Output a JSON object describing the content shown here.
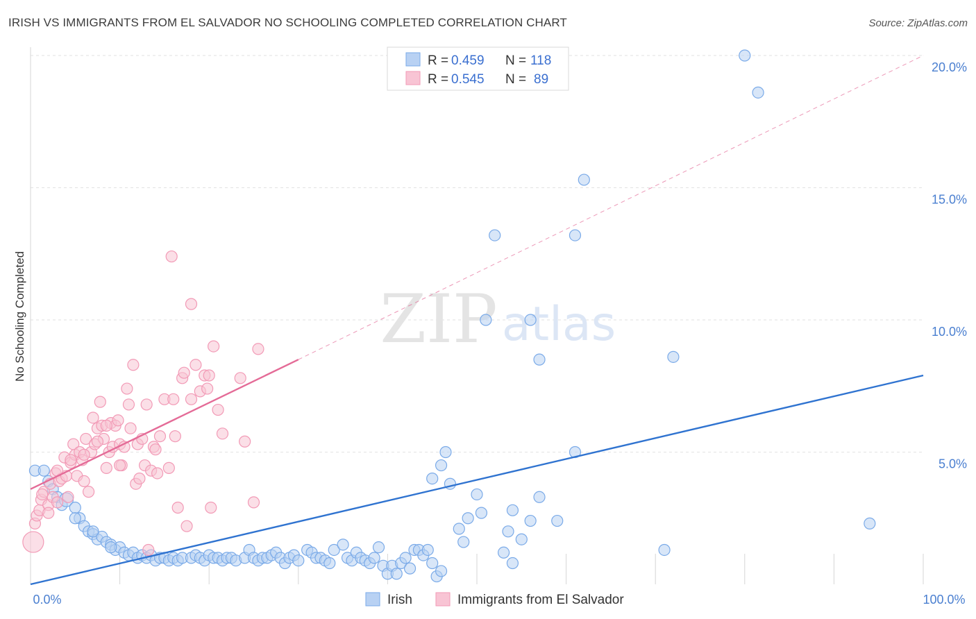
{
  "header": {
    "title": "IRISH VS IMMIGRANTS FROM EL SALVADOR NO SCHOOLING COMPLETED CORRELATION CHART",
    "source": "Source: ZipAtlas.com"
  },
  "watermark": {
    "zip": "ZIP",
    "atlas": "atlas"
  },
  "chart_data": {
    "type": "scatter",
    "ylabel": "No Schooling Completed",
    "xlim": [
      0,
      100
    ],
    "ylim": [
      0,
      20
    ],
    "y_ticks": [
      {
        "value": 5,
        "label": "5.0%"
      },
      {
        "value": 10,
        "label": "10.0%"
      },
      {
        "value": 15,
        "label": "15.0%"
      },
      {
        "value": 20,
        "label": "20.0%"
      }
    ],
    "x_ticks": [
      {
        "value": 0,
        "label": "0.0%"
      },
      {
        "value": 100,
        "label": "100.0%"
      }
    ],
    "legend": {
      "placement": "top-center",
      "rows": [
        {
          "r_label": "R =",
          "r_value": "0.459",
          "n_label": "N =",
          "n_value": "118"
        },
        {
          "r_label": "R =",
          "r_value": "0.545",
          "n_label": "N =",
          "n_value": "89"
        }
      ]
    },
    "series": [
      {
        "name": "Irish",
        "color": "#7aaae8",
        "fill": "#b8d1f3",
        "trend": {
          "x0": 0,
          "y0": 0.0,
          "x1": 100,
          "y1": 7.9,
          "color": "#2f73d0"
        },
        "points": [
          [
            0.5,
            4.3
          ],
          [
            1.5,
            4.3
          ],
          [
            2,
            3.9
          ],
          [
            2.5,
            3.6
          ],
          [
            3,
            3.3
          ],
          [
            3.5,
            3.0
          ],
          [
            4,
            3.2
          ],
          [
            5,
            2.9
          ],
          [
            5.5,
            2.5
          ],
          [
            6,
            2.2
          ],
          [
            6.5,
            2.0
          ],
          [
            7,
            1.9
          ],
          [
            7.5,
            1.7
          ],
          [
            8,
            1.8
          ],
          [
            8.5,
            1.6
          ],
          [
            9,
            1.5
          ],
          [
            9.5,
            1.3
          ],
          [
            10,
            1.4
          ],
          [
            10.5,
            1.2
          ],
          [
            11,
            1.1
          ],
          [
            11.5,
            1.2
          ],
          [
            12,
            1.0
          ],
          [
            12.5,
            1.1
          ],
          [
            13,
            1.0
          ],
          [
            13.5,
            1.1
          ],
          [
            14,
            0.9
          ],
          [
            14.5,
            1.0
          ],
          [
            15,
            1.0
          ],
          [
            15.5,
            0.9
          ],
          [
            16,
            1.0
          ],
          [
            16.5,
            0.9
          ],
          [
            17,
            1.0
          ],
          [
            18,
            1.0
          ],
          [
            18.5,
            1.1
          ],
          [
            19,
            1.0
          ],
          [
            19.5,
            0.9
          ],
          [
            20,
            1.1
          ],
          [
            20.5,
            1.0
          ],
          [
            21,
            1.0
          ],
          [
            21.5,
            0.9
          ],
          [
            22,
            1.0
          ],
          [
            22.5,
            1.0
          ],
          [
            23,
            0.9
          ],
          [
            24,
            1.0
          ],
          [
            24.5,
            1.3
          ],
          [
            25,
            1.0
          ],
          [
            25.5,
            0.9
          ],
          [
            26,
            1.0
          ],
          [
            26.5,
            1.0
          ],
          [
            27,
            1.1
          ],
          [
            27.5,
            1.2
          ],
          [
            28,
            1.0
          ],
          [
            28.5,
            0.8
          ],
          [
            29,
            1.0
          ],
          [
            29.5,
            1.1
          ],
          [
            30,
            0.9
          ],
          [
            31,
            1.3
          ],
          [
            31.5,
            1.2
          ],
          [
            32,
            1.0
          ],
          [
            32.5,
            1.0
          ],
          [
            33,
            0.9
          ],
          [
            33.5,
            0.8
          ],
          [
            34,
            1.3
          ],
          [
            35,
            1.5
          ],
          [
            35.5,
            1.0
          ],
          [
            36,
            0.9
          ],
          [
            36.5,
            1.2
          ],
          [
            37,
            1.0
          ],
          [
            37.5,
            0.9
          ],
          [
            38,
            0.8
          ],
          [
            38.5,
            1.0
          ],
          [
            39,
            1.4
          ],
          [
            39.5,
            0.7
          ],
          [
            40,
            0.4
          ],
          [
            40.5,
            0.7
          ],
          [
            41,
            0.4
          ],
          [
            41.5,
            0.8
          ],
          [
            42,
            1.0
          ],
          [
            42.5,
            0.6
          ],
          [
            43,
            1.3
          ],
          [
            43.5,
            1.3
          ],
          [
            44,
            1.1
          ],
          [
            44.5,
            1.3
          ],
          [
            45,
            0.8
          ],
          [
            45.5,
            0.3
          ],
          [
            46,
            0.5
          ],
          [
            45,
            4.0
          ],
          [
            46,
            4.5
          ],
          [
            46.5,
            5.0
          ],
          [
            47,
            3.8
          ],
          [
            48,
            2.1
          ],
          [
            48.5,
            1.6
          ],
          [
            49,
            2.5
          ],
          [
            50,
            3.4
          ],
          [
            50.5,
            2.7
          ],
          [
            51,
            10.0
          ],
          [
            52,
            13.2
          ],
          [
            53,
            1.2
          ],
          [
            53.5,
            2.0
          ],
          [
            54,
            0.8
          ],
          [
            54,
            2.8
          ],
          [
            55,
            1.7
          ],
          [
            56,
            10.0
          ],
          [
            56,
            2.4
          ],
          [
            57,
            3.3
          ],
          [
            57,
            8.5
          ],
          [
            59,
            2.4
          ],
          [
            61,
            13.2
          ],
          [
            61,
            5.0
          ],
          [
            62,
            15.3
          ],
          [
            71,
            1.3
          ],
          [
            72,
            8.6
          ],
          [
            80,
            20.0
          ],
          [
            81.5,
            18.6
          ],
          [
            94,
            2.3
          ],
          [
            5,
            2.5
          ],
          [
            7,
            2.0
          ],
          [
            9,
            1.4
          ]
        ]
      },
      {
        "name": "Immigrants from El Salvador",
        "color": "#f29ab6",
        "fill": "#f8c4d4",
        "trend": {
          "x0": 0,
          "y0": 3.6,
          "x1": 30,
          "y1": 8.5,
          "color": "#e46b97",
          "extend_x1": 100,
          "extend_y1": 20.0
        },
        "points": [
          [
            0.3,
            1.6
          ],
          [
            0.5,
            2.3
          ],
          [
            0.7,
            2.6
          ],
          [
            1,
            2.8
          ],
          [
            1.2,
            3.2
          ],
          [
            1.5,
            3.5
          ],
          [
            2,
            3.0
          ],
          [
            2.2,
            3.8
          ],
          [
            2.5,
            3.3
          ],
          [
            2.8,
            4.2
          ],
          [
            3,
            3.1
          ],
          [
            3.2,
            3.9
          ],
          [
            3.5,
            4.0
          ],
          [
            3.8,
            4.8
          ],
          [
            4,
            4.1
          ],
          [
            4.2,
            3.3
          ],
          [
            4.5,
            4.6
          ],
          [
            4.8,
            5.3
          ],
          [
            5,
            4.9
          ],
          [
            5.2,
            4.1
          ],
          [
            5.5,
            5.0
          ],
          [
            5.8,
            4.7
          ],
          [
            6,
            3.9
          ],
          [
            6.2,
            5.5
          ],
          [
            6.5,
            3.5
          ],
          [
            6.8,
            5.0
          ],
          [
            7,
            6.3
          ],
          [
            7.2,
            5.3
          ],
          [
            7.5,
            5.9
          ],
          [
            7.8,
            6.9
          ],
          [
            8,
            6.0
          ],
          [
            8.2,
            5.5
          ],
          [
            8.5,
            4.4
          ],
          [
            8.8,
            5.0
          ],
          [
            9,
            6.1
          ],
          [
            9.2,
            5.2
          ],
          [
            9.5,
            6.0
          ],
          [
            9.8,
            6.2
          ],
          [
            10,
            5.3
          ],
          [
            10.2,
            4.5
          ],
          [
            10.5,
            5.2
          ],
          [
            10.8,
            7.4
          ],
          [
            11,
            6.8
          ],
          [
            11.2,
            5.9
          ],
          [
            11.5,
            8.3
          ],
          [
            11.8,
            3.8
          ],
          [
            12,
            5.3
          ],
          [
            12.2,
            4.0
          ],
          [
            12.5,
            5.5
          ],
          [
            12.8,
            4.5
          ],
          [
            13,
            6.8
          ],
          [
            13.2,
            1.3
          ],
          [
            13.5,
            4.3
          ],
          [
            13.8,
            5.2
          ],
          [
            14,
            5.1
          ],
          [
            14.2,
            4.2
          ],
          [
            14.5,
            5.6
          ],
          [
            15,
            7.0
          ],
          [
            15.5,
            4.4
          ],
          [
            15.8,
            12.4
          ],
          [
            16,
            7.0
          ],
          [
            16.2,
            5.6
          ],
          [
            16.5,
            2.9
          ],
          [
            17,
            7.8
          ],
          [
            17.2,
            8.0
          ],
          [
            17.5,
            2.2
          ],
          [
            18,
            7.0
          ],
          [
            18,
            10.6
          ],
          [
            18.5,
            8.3
          ],
          [
            19,
            7.3
          ],
          [
            19.5,
            7.9
          ],
          [
            19.8,
            7.4
          ],
          [
            20,
            7.9
          ],
          [
            20.2,
            2.9
          ],
          [
            20.5,
            9.0
          ],
          [
            21,
            6.6
          ],
          [
            21.5,
            5.7
          ],
          [
            23.5,
            7.8
          ],
          [
            24,
            5.4
          ],
          [
            25,
            3.1
          ],
          [
            25.5,
            8.9
          ],
          [
            6,
            4.9
          ],
          [
            7.5,
            5.4
          ],
          [
            8.5,
            6.0
          ],
          [
            3,
            4.3
          ],
          [
            2,
            2.7
          ],
          [
            1.3,
            3.4
          ],
          [
            4.5,
            4.7
          ],
          [
            10,
            4.5
          ]
        ]
      }
    ]
  },
  "bottom_legend": {
    "items": [
      {
        "label": "Irish",
        "color": "#b8d1f3",
        "border": "#7aaae8"
      },
      {
        "label": "Immigrants from El Salvador",
        "color": "#f8c4d4",
        "border": "#f29ab6"
      }
    ]
  }
}
